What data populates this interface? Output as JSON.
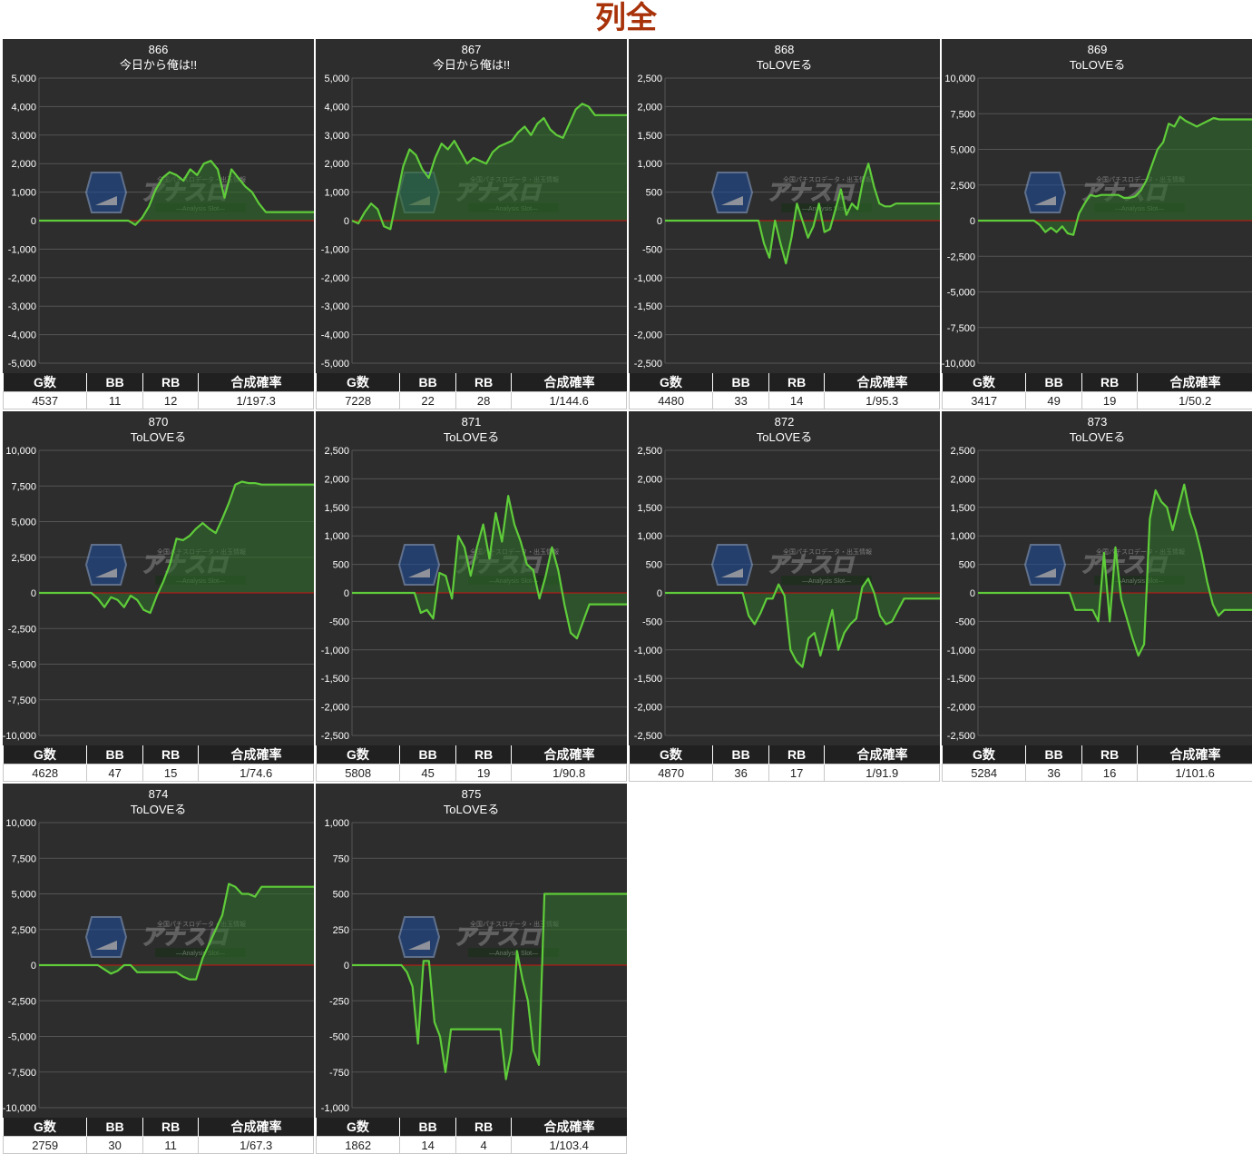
{
  "page": {
    "title": "列全"
  },
  "table_headers": [
    "G数",
    "BB",
    "RB",
    "合成確率"
  ],
  "colors": {
    "panel_bg": "#2d2d2d",
    "line": "#5fcc3a",
    "fill": "#2f6a2a",
    "zero_line": "#cc1111",
    "grid": "#555555",
    "title_color": "#a8320a"
  },
  "watermark": {
    "logo_icon": "anaslot-logo-icon",
    "text": "アナスロ",
    "sub": "全国パチスロデータ・出玉情報",
    "tag": "―Analysis Slot―"
  },
  "chart_data": [
    {
      "type": "area",
      "title": "866",
      "subtitle": "今日から俺は!!",
      "yticks": [
        "5,000",
        "4,000",
        "3,000",
        "2,000",
        "1,000",
        "0",
        "-1,000",
        "-2,000",
        "-3,000",
        "-4,000",
        "-5,000"
      ],
      "ylim": [
        -5000,
        5000
      ],
      "x": [
        0,
        1,
        2,
        3,
        4,
        5,
        6,
        7,
        8,
        9,
        10,
        11,
        12,
        13,
        14,
        15,
        16,
        17,
        18,
        19,
        20,
        21,
        22,
        23,
        24,
        25,
        26,
        27,
        28,
        29,
        30,
        31,
        32,
        33,
        34,
        35,
        36,
        37,
        38,
        39,
        40
      ],
      "y": [
        0,
        0,
        0,
        0,
        0,
        0,
        0,
        0,
        0,
        0,
        0,
        0,
        0,
        0,
        -150,
        100,
        500,
        1100,
        1500,
        1700,
        1600,
        1400,
        1800,
        1600,
        2000,
        2100,
        1800,
        800,
        1800,
        1500,
        1200,
        1000,
        600,
        300,
        300,
        300,
        300,
        300,
        300,
        300,
        300
      ],
      "stats": {
        "g": "4537",
        "bb": "11",
        "rb": "12",
        "prob": "1/197.3"
      }
    },
    {
      "type": "area",
      "title": "867",
      "subtitle": "今日から俺は!!",
      "yticks": [
        "5,000",
        "4,000",
        "3,000",
        "2,000",
        "1,000",
        "0",
        "-1,000",
        "-2,000",
        "-3,000",
        "-4,000",
        "-5,000"
      ],
      "ylim": [
        -5000,
        5000
      ],
      "x": [
        0,
        1,
        2,
        3,
        4,
        5,
        6,
        7,
        8,
        9,
        10,
        11,
        12,
        13,
        14,
        15,
        16,
        17,
        18,
        19,
        20,
        21,
        22,
        23,
        24,
        25,
        26,
        27,
        28,
        29,
        30,
        31,
        32,
        33,
        34,
        35,
        36,
        37,
        38,
        39,
        40,
        41,
        42,
        43
      ],
      "y": [
        0,
        -100,
        300,
        600,
        400,
        -200,
        -300,
        800,
        1900,
        2500,
        2300,
        1800,
        1500,
        2200,
        2700,
        2500,
        2800,
        2400,
        2000,
        2200,
        2100,
        2000,
        2400,
        2600,
        2700,
        2800,
        3100,
        3300,
        3000,
        3400,
        3600,
        3200,
        3000,
        2900,
        3400,
        3900,
        4100,
        4000,
        3700,
        3700,
        3700,
        3700,
        3700,
        3700
      ],
      "stats": {
        "g": "7228",
        "bb": "22",
        "rb": "28",
        "prob": "1/144.6"
      }
    },
    {
      "type": "area",
      "title": "868",
      "subtitle": "ToLOVEる",
      "yticks": [
        "2,500",
        "2,000",
        "1,500",
        "1,000",
        "500",
        "0",
        "-500",
        "-1,000",
        "-1,500",
        "-2,000",
        "-2,500"
      ],
      "ylim": [
        -2500,
        2500
      ],
      "x": [
        0,
        1,
        2,
        3,
        4,
        5,
        6,
        7,
        8,
        9,
        10,
        11,
        12,
        13,
        14,
        15,
        16,
        17,
        18,
        19,
        20,
        21,
        22,
        23,
        24,
        25,
        26,
        27,
        28,
        29,
        30,
        31,
        32,
        33,
        34,
        35,
        36,
        37,
        38,
        39,
        40,
        41,
        42,
        43,
        44,
        45,
        46,
        47,
        48,
        49,
        50
      ],
      "y": [
        0,
        0,
        0,
        0,
        0,
        0,
        0,
        0,
        0,
        0,
        0,
        0,
        0,
        0,
        0,
        0,
        0,
        0,
        -400,
        -650,
        0,
        -400,
        -750,
        -300,
        300,
        0,
        -300,
        -100,
        300,
        -200,
        -150,
        200,
        550,
        100,
        300,
        200,
        700,
        1000,
        600,
        300,
        250,
        250,
        300,
        300,
        300,
        300,
        300,
        300,
        300,
        300,
        300
      ],
      "stats": {
        "g": "4480",
        "bb": "33",
        "rb": "14",
        "prob": "1/95.3"
      }
    },
    {
      "type": "area",
      "title": "869",
      "subtitle": "ToLOVEる",
      "yticks": [
        "10,000",
        "7,500",
        "5,000",
        "2,500",
        "0",
        "-2,500",
        "-5,000",
        "-7,500",
        "-10,000"
      ],
      "ylim": [
        -10000,
        10000
      ],
      "x": [
        0,
        1,
        2,
        3,
        4,
        5,
        6,
        7,
        8,
        9,
        10,
        11,
        12,
        13,
        14,
        15,
        16,
        17,
        18,
        19,
        20,
        21,
        22,
        23,
        24,
        25,
        26,
        27,
        28,
        29,
        30,
        31,
        32,
        33,
        34,
        35,
        36,
        37,
        38,
        39,
        40,
        41,
        42,
        43,
        44,
        45,
        46,
        47,
        48,
        49
      ],
      "y": [
        0,
        0,
        0,
        0,
        0,
        0,
        0,
        0,
        0,
        0,
        0,
        -300,
        -800,
        -500,
        -800,
        -400,
        -900,
        -1000,
        500,
        1200,
        1800,
        1700,
        1800,
        1800,
        1800,
        1800,
        1600,
        1600,
        1700,
        2100,
        2800,
        3900,
        5000,
        5500,
        6800,
        6600,
        7300,
        7000,
        6800,
        6600,
        6800,
        7000,
        7200,
        7100,
        7100,
        7100,
        7100,
        7100,
        7100,
        7100
      ],
      "stats": {
        "g": "3417",
        "bb": "49",
        "rb": "19",
        "prob": "1/50.2"
      }
    },
    {
      "type": "area",
      "title": "870",
      "subtitle": "ToLOVEる",
      "yticks": [
        "10,000",
        "7,500",
        "5,000",
        "2,500",
        "0",
        "-2,500",
        "-5,000",
        "-7,500",
        "-10,000"
      ],
      "ylim": [
        -10000,
        10000
      ],
      "x": [
        0,
        1,
        2,
        3,
        4,
        5,
        6,
        7,
        8,
        9,
        10,
        11,
        12,
        13,
        14,
        15,
        16,
        17,
        18,
        19,
        20,
        21,
        22,
        23,
        24,
        25,
        26,
        27,
        28,
        29,
        30,
        31,
        32,
        33,
        34,
        35,
        36,
        37,
        38,
        39,
        40,
        41,
        42
      ],
      "y": [
        0,
        0,
        0,
        0,
        0,
        0,
        0,
        0,
        0,
        -400,
        -1000,
        -300,
        -500,
        -1000,
        -200,
        -500,
        -1200,
        -1400,
        -200,
        800,
        2000,
        3800,
        3700,
        4000,
        4500,
        4900,
        4500,
        4200,
        5200,
        6300,
        7600,
        7800,
        7700,
        7700,
        7600,
        7600,
        7600,
        7600,
        7600,
        7600,
        7600,
        7600,
        7600
      ],
      "stats": {
        "g": "4628",
        "bb": "47",
        "rb": "15",
        "prob": "1/74.6"
      }
    },
    {
      "type": "area",
      "title": "871",
      "subtitle": "ToLOVEる",
      "yticks": [
        "2,500",
        "2,000",
        "1,500",
        "1,000",
        "500",
        "0",
        "-500",
        "-1,000",
        "-1,500",
        "-2,000",
        "-2,500"
      ],
      "ylim": [
        -2500,
        2500
      ],
      "x": [
        0,
        1,
        2,
        3,
        4,
        5,
        6,
        7,
        8,
        9,
        10,
        11,
        12,
        13,
        14,
        15,
        16,
        17,
        18,
        19,
        20,
        21,
        22,
        23,
        24,
        25,
        26,
        27,
        28,
        29,
        30,
        31,
        32,
        33,
        34,
        35,
        36,
        37,
        38,
        39,
        40,
        41,
        42,
        43,
        44
      ],
      "y": [
        0,
        0,
        0,
        0,
        0,
        0,
        0,
        0,
        0,
        0,
        0,
        -350,
        -300,
        -450,
        350,
        300,
        -100,
        1000,
        800,
        300,
        800,
        1200,
        600,
        1400,
        900,
        1700,
        1200,
        900,
        500,
        400,
        -100,
        300,
        800,
        400,
        -200,
        -700,
        -800,
        -500,
        -200,
        -200,
        -200,
        -200,
        -200,
        -200,
        -200
      ],
      "stats": {
        "g": "5808",
        "bb": "45",
        "rb": "19",
        "prob": "1/90.8"
      }
    },
    {
      "type": "area",
      "title": "872",
      "subtitle": "ToLOVEる",
      "yticks": [
        "2,500",
        "2,000",
        "1,500",
        "1,000",
        "500",
        "0",
        "-500",
        "-1,000",
        "-1,500",
        "-2,000",
        "-2,500"
      ],
      "ylim": [
        -2500,
        2500
      ],
      "x": [
        0,
        1,
        2,
        3,
        4,
        5,
        6,
        7,
        8,
        9,
        10,
        11,
        12,
        13,
        14,
        15,
        16,
        17,
        18,
        19,
        20,
        21,
        22,
        23,
        24,
        25,
        26,
        27,
        28,
        29,
        30,
        31,
        32,
        33,
        34,
        35,
        36,
        37,
        38,
        39,
        40,
        41,
        42,
        43,
        44,
        45,
        46
      ],
      "y": [
        0,
        0,
        0,
        0,
        0,
        0,
        0,
        0,
        0,
        0,
        0,
        0,
        0,
        0,
        -400,
        -550,
        -350,
        -100,
        -100,
        150,
        -50,
        -1000,
        -1200,
        -1300,
        -800,
        -700,
        -1100,
        -700,
        -300,
        -1000,
        -700,
        -550,
        -450,
        100,
        250,
        0,
        -400,
        -550,
        -500,
        -300,
        -100,
        -100,
        -100,
        -100,
        -100,
        -100,
        -100
      ],
      "stats": {
        "g": "4870",
        "bb": "36",
        "rb": "17",
        "prob": "1/91.9"
      }
    },
    {
      "type": "area",
      "title": "873",
      "subtitle": "ToLOVEる",
      "yticks": [
        "2,500",
        "2,000",
        "1,500",
        "1,000",
        "500",
        "0",
        "-500",
        "-1,000",
        "-1,500",
        "-2,000",
        "-2,500"
      ],
      "ylim": [
        -2500,
        2500
      ],
      "x": [
        0,
        1,
        2,
        3,
        4,
        5,
        6,
        7,
        8,
        9,
        10,
        11,
        12,
        13,
        14,
        15,
        16,
        17,
        18,
        19,
        20,
        21,
        22,
        23,
        24,
        25,
        26,
        27,
        28,
        29,
        30,
        31,
        32,
        33,
        34,
        35,
        36,
        37,
        38,
        39,
        40,
        41,
        42,
        43,
        44,
        45,
        46,
        47,
        48
      ],
      "y": [
        0,
        0,
        0,
        0,
        0,
        0,
        0,
        0,
        0,
        0,
        0,
        0,
        0,
        0,
        0,
        0,
        0,
        -300,
        -300,
        -300,
        -300,
        -500,
        700,
        -500,
        800,
        -100,
        -450,
        -800,
        -1100,
        -900,
        1300,
        1800,
        1600,
        1500,
        1100,
        1500,
        1900,
        1400,
        1100,
        700,
        200,
        -200,
        -400,
        -300,
        -300,
        -300,
        -300,
        -300,
        -300
      ],
      "stats": {
        "g": "5284",
        "bb": "36",
        "rb": "16",
        "prob": "1/101.6"
      }
    },
    {
      "type": "area",
      "title": "874",
      "subtitle": "ToLOVEる",
      "yticks": [
        "10,000",
        "7,500",
        "5,000",
        "2,500",
        "0",
        "-2,500",
        "-5,000",
        "-7,500",
        "-10,000"
      ],
      "ylim": [
        -10000,
        10000
      ],
      "x": [
        0,
        1,
        2,
        3,
        4,
        5,
        6,
        7,
        8,
        9,
        10,
        11,
        12,
        13,
        14,
        15,
        16,
        17,
        18,
        19,
        20,
        21,
        22,
        23,
        24,
        25,
        26,
        27,
        28,
        29,
        30,
        31,
        32,
        33,
        34,
        35,
        36,
        37,
        38,
        39,
        40,
        41,
        42
      ],
      "y": [
        0,
        0,
        0,
        0,
        0,
        0,
        0,
        0,
        0,
        0,
        -300,
        -600,
        -400,
        0,
        0,
        -500,
        -500,
        -500,
        -500,
        -500,
        -500,
        -500,
        -800,
        -1000,
        -1000,
        500,
        1500,
        2500,
        3500,
        5700,
        5500,
        5000,
        5000,
        4800,
        5500,
        5500,
        5500,
        5500,
        5500,
        5500,
        5500,
        5500,
        5500
      ],
      "stats": {
        "g": "2759",
        "bb": "30",
        "rb": "11",
        "prob": "1/67.3"
      }
    },
    {
      "type": "area",
      "title": "875",
      "subtitle": "ToLOVEる",
      "yticks": [
        "1,000",
        "750",
        "500",
        "250",
        "0",
        "-250",
        "-500",
        "-750",
        "-1,000"
      ],
      "ylim": [
        -1000,
        1000
      ],
      "x": [
        0,
        1,
        2,
        3,
        4,
        5,
        6,
        7,
        8,
        9,
        10,
        11,
        12,
        13,
        14,
        15,
        16,
        17,
        18,
        19,
        20,
        21,
        22,
        23,
        24,
        25,
        26,
        27,
        28,
        29,
        30,
        31,
        32,
        33,
        34,
        35,
        36,
        37,
        38,
        39,
        40,
        41,
        42,
        43,
        44,
        45,
        46,
        47,
        48,
        49,
        50
      ],
      "y": [
        0,
        0,
        0,
        0,
        0,
        0,
        0,
        0,
        0,
        0,
        -50,
        -150,
        -550,
        30,
        30,
        -400,
        -500,
        -750,
        -450,
        -450,
        -450,
        -450,
        -450,
        -450,
        -450,
        -450,
        -450,
        -450,
        -800,
        -600,
        100,
        -100,
        -250,
        -600,
        -700,
        500,
        500,
        500,
        500,
        500,
        500,
        500,
        500,
        500,
        500,
        500,
        500,
        500,
        500,
        500,
        500
      ],
      "stats": {
        "g": "1862",
        "bb": "14",
        "rb": "4",
        "prob": "1/103.4"
      }
    }
  ]
}
